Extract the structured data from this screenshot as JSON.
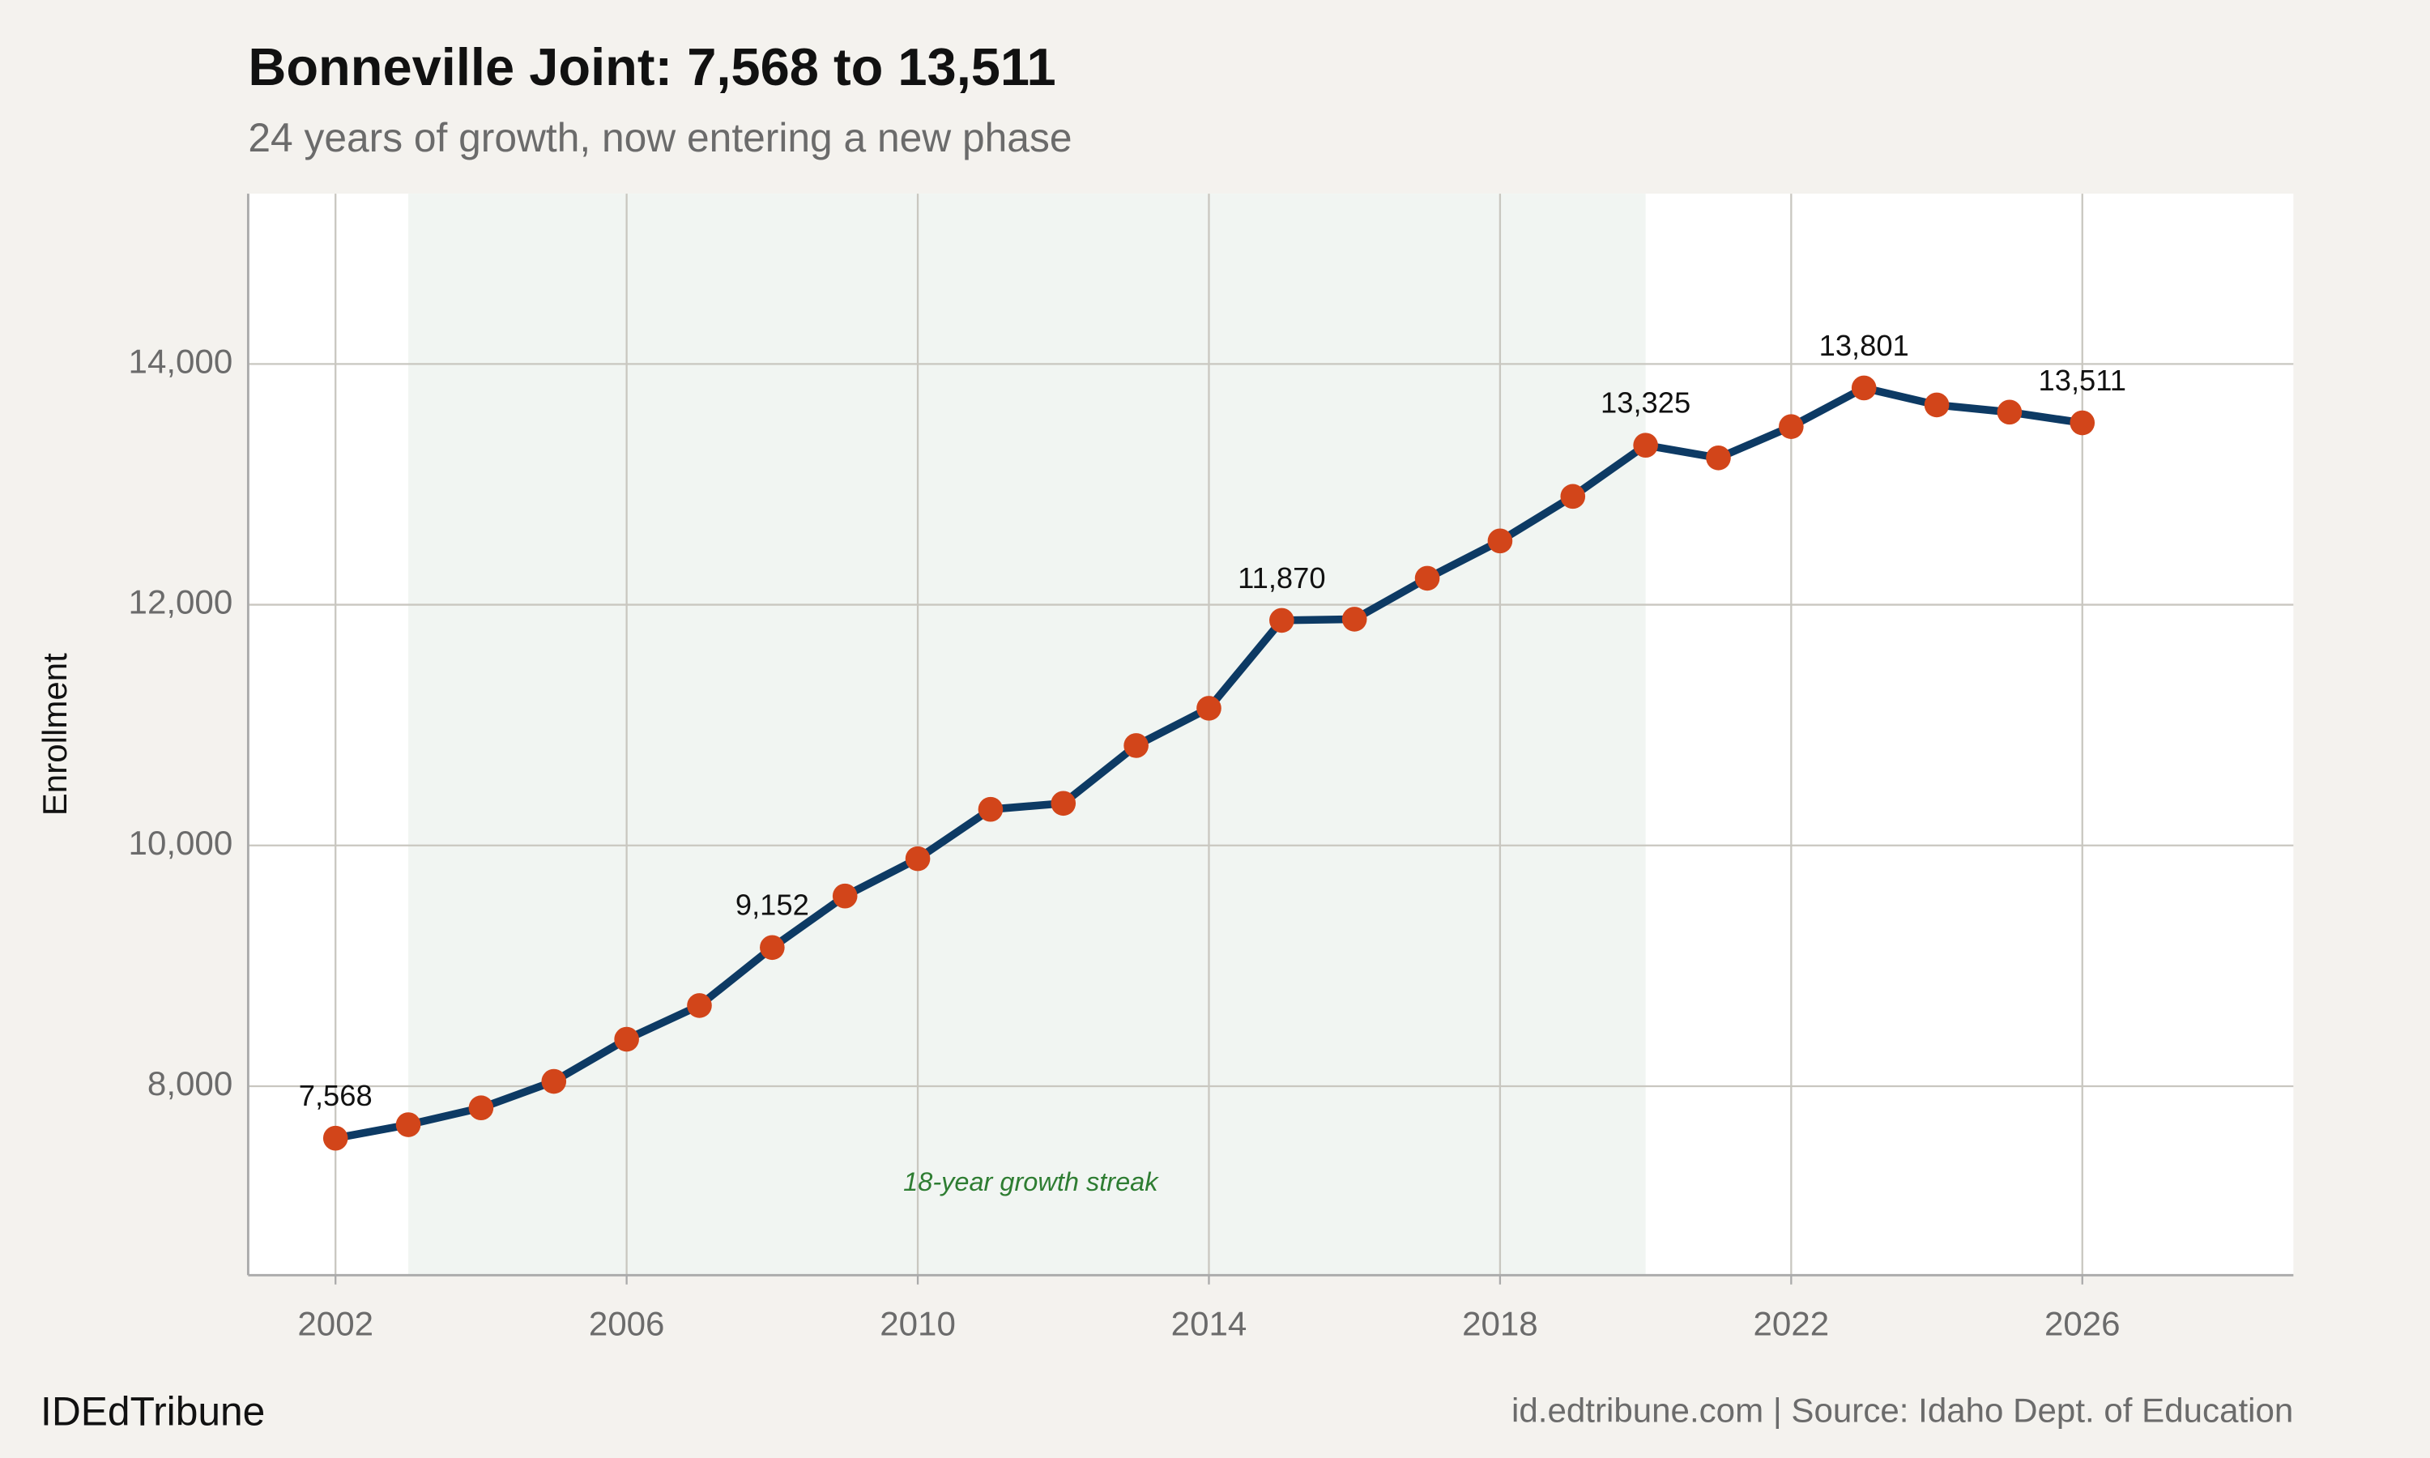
{
  "chart_data": {
    "type": "line",
    "title": "Bonneville Joint: 7,568 to 13,511",
    "subtitle": "24 years of growth, now entering a new phase",
    "y_label": "Enrollment",
    "brand": "IDEdTribune",
    "source": "id.edtribune.com | Source: Idaho Dept. of Education",
    "x": [
      2002,
      2003,
      2004,
      2005,
      2006,
      2007,
      2008,
      2009,
      2010,
      2011,
      2012,
      2013,
      2014,
      2015,
      2016,
      2017,
      2018,
      2019,
      2020,
      2021,
      2022,
      2023,
      2024,
      2025,
      2026
    ],
    "values": [
      7568,
      7680,
      7820,
      8040,
      8390,
      8670,
      9152,
      9580,
      9890,
      10300,
      10350,
      10830,
      11140,
      11870,
      11880,
      12220,
      12530,
      12900,
      13325,
      13220,
      13480,
      13801,
      13660,
      13600,
      13511
    ],
    "value_labels": [
      "7,568",
      null,
      null,
      null,
      null,
      null,
      "9,152",
      null,
      null,
      null,
      null,
      null,
      null,
      "11,870",
      null,
      null,
      null,
      null,
      "13,325",
      null,
      null,
      "13,801",
      null,
      null,
      "13,511"
    ],
    "color": "#0d3a64",
    "marker_color": "#d2451a",
    "xlim": [
      2000.8,
      2028.9
    ],
    "ylim": [
      6430,
      15415
    ],
    "xticks": [
      2002,
      2006,
      2010,
      2014,
      2018,
      2022,
      2026
    ],
    "yticks": [
      {
        "value": 8000,
        "label": "8,000"
      },
      {
        "value": 10000,
        "label": "10,000"
      },
      {
        "value": 12000,
        "label": "12,000"
      },
      {
        "value": 14000,
        "label": "14,000"
      }
    ],
    "grid": true,
    "highlight": {
      "xlim": [
        2003,
        2020
      ],
      "color": "#f1f5f2",
      "label": "18-year growth streak",
      "label_x": 2011.55,
      "label_y": 7190,
      "label_color": "#2e7d32"
    }
  }
}
